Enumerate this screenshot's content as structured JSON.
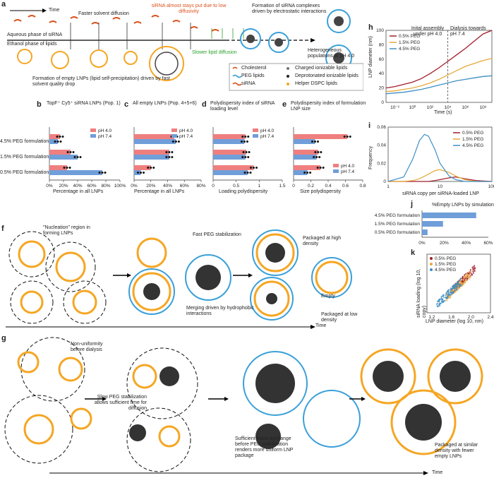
{
  "panel_labels": {
    "a": "a",
    "b": "b",
    "c": "c",
    "d": "d",
    "e": "e",
    "f": "f",
    "g": "g",
    "h": "h",
    "i": "i",
    "j": "j",
    "k": "k"
  },
  "panel_a": {
    "time_label": "Time",
    "faster_solvent": "Faster solvent diffusion",
    "sirna_stays": "siRNA almost stays put due to low diffusivity",
    "formation_complexes": "Formation of siRNA complexes driven by electrostatic interactions",
    "aqueous_phase": "Aqueous phase of siRNA",
    "ethanol_phase": "Ethanol phase of lipids",
    "slower_lipid": "Slower lipid diffusion",
    "heterogeneous": "Heterogeneous populations at pH 4.0",
    "empty_lnps": "Formation of empty LNPs (lipid self-precipitation) driven by fast solvent quality drop",
    "legend": [
      "Cholesterol",
      "PEG lipids",
      "siRNA",
      "Charged ionizable lipids",
      "Deprotonated ionizable lipids",
      "Helper DSPC lipids"
    ]
  },
  "bar_panels": {
    "categories": [
      "4.5% PEG formulation",
      "1.5% PEG formulation",
      "0.5% PEG formulation"
    ],
    "legend": [
      "pH 4.0",
      "pH 7.4"
    ],
    "colors": {
      "ph4": "#ef7f7f",
      "ph74": "#6f9ed9"
    },
    "b": {
      "title": "TopF⁺ Cy5⁺ siRNA LNPs (Pop. 1)",
      "xlabel": "Percentage in all LNPs",
      "ticks": [
        "0%",
        "20%",
        "40%",
        "60%",
        "80%",
        "100%"
      ],
      "xmax": 100,
      "pH4": [
        15,
        30,
        25
      ],
      "pH74": [
        12,
        40,
        75
      ]
    },
    "c": {
      "title": "All empty LNPs (Pop. 4+5+6)",
      "xlabel": "Percentage in all LNPs",
      "ticks": [
        "0%",
        "20%",
        "40%",
        "60%",
        "80%"
      ],
      "xmax": 80,
      "pH4": [
        48,
        42,
        20
      ],
      "pH74": [
        50,
        42,
        8
      ]
    },
    "d": {
      "title": "Polydispersity index of siRNA loading level",
      "xlabel": "Loading polydispersity",
      "ticks": [
        "0",
        "0.5",
        "1",
        "1.5"
      ],
      "xmax": 1.5,
      "pH4": [
        0.7,
        0.72,
        0.88
      ],
      "pH74": [
        0.68,
        0.7,
        0.75
      ]
    },
    "e": {
      "title": "Polydispersity index of formulation LNP size",
      "xlabel": "Size polydispersity",
      "ticks": [
        "0",
        "0.2",
        "0.4",
        "0.6",
        "0.8"
      ],
      "xmax": 0.9,
      "pH4": [
        0.7,
        0.32,
        0.35
      ],
      "pH74": [
        0.28,
        0.3,
        0.18
      ]
    }
  },
  "panel_f": {
    "nucleation": "\"Nucleation\" region in forming LNPs",
    "fast_peg": "Fast PEG stabilization",
    "merging": "Merging driven by hydrophobic interactions",
    "packaged_high": "Packaged at high density",
    "empty": "Empty",
    "packaged_low": "Packaged at low density",
    "time": "Time"
  },
  "panel_g": {
    "non_uniformity": "Non-uniformity before dialysis",
    "slow_peg": "Slow PEG stabilization allows sufficient time for diffusion",
    "sufficient": "Sufficient mass exchange before PEG stabilization renders more uniform LNP package",
    "packaged_similar": "Packaged at similar density with fewer empty LNPs",
    "time": "Time"
  },
  "chart_data": [
    {
      "type": "line",
      "panel": "h",
      "title": "",
      "annotation_left": "Inital assembly under pH 4.0",
      "annotation_right": "Dialysis towards pH 7.4",
      "xlabel": "Time (s)",
      "ylabel": "LNP diameter (nm)",
      "x_scale": "log",
      "xlim": [
        0.001,
        1000000000
      ],
      "ylim": [
        0,
        100
      ],
      "xticks": [
        "10⁻²",
        "10⁰",
        "10²",
        "10⁴",
        "10⁶",
        "10⁸"
      ],
      "yticks": [
        "0",
        "20",
        "40",
        "60",
        "80",
        "100"
      ],
      "legend_position": "top-left",
      "series": [
        {
          "name": "0.5% PEG",
          "color": "#a11d2b",
          "x": [
            0.001,
            0.01,
            0.1,
            1,
            10,
            100,
            1000,
            10000,
            100000,
            1000000,
            10000000,
            100000000,
            1000000000
          ],
          "y": [
            20,
            22,
            25,
            28,
            33,
            40,
            48,
            57,
            66,
            75,
            85,
            95,
            100
          ]
        },
        {
          "name": "1.5% PEG",
          "color": "#e7a93a",
          "x": [
            0.001,
            0.01,
            0.1,
            1,
            10,
            100,
            1000,
            10000,
            100000,
            1000000,
            10000000,
            100000000,
            1000000000
          ],
          "y": [
            15,
            16,
            18,
            20,
            23,
            27,
            32,
            38,
            44,
            50,
            54,
            58,
            61
          ]
        },
        {
          "name": "4.5% PEG",
          "color": "#3d8fc4",
          "x": [
            0.001,
            0.01,
            0.1,
            1,
            10,
            100,
            1000,
            10000,
            100000,
            1000000,
            10000000,
            100000000,
            1000000000
          ],
          "y": [
            12,
            13,
            14,
            16,
            18,
            21,
            24,
            27,
            30,
            32,
            34,
            36,
            37
          ]
        }
      ]
    },
    {
      "type": "line",
      "panel": "i",
      "xlabel": "siRNA copy per siRNA-loaded LNP",
      "ylabel": "Frequency",
      "x_scale": "log",
      "xlim": [
        1,
        100
      ],
      "ylim": [
        0,
        0.06
      ],
      "xticks": [
        "1",
        "10",
        "100"
      ],
      "yticks": [
        "0",
        "0.02",
        "0.04",
        "0.06"
      ],
      "legend_position": "top-right",
      "series": [
        {
          "name": "0.5% PEG",
          "color": "#a11d2b",
          "x": [
            1,
            2,
            4,
            6,
            8,
            10,
            15,
            20,
            30,
            50,
            100
          ],
          "y": [
            0,
            0,
            0,
            0,
            0.001,
            0.002,
            0.004,
            0.005,
            0.003,
            0.001,
            0
          ]
        },
        {
          "name": "1.5% PEG",
          "color": "#e7a93a",
          "x": [
            1,
            2,
            3,
            4,
            6,
            8,
            10,
            15,
            20,
            30,
            50,
            100
          ],
          "y": [
            0,
            0,
            0.001,
            0.003,
            0.008,
            0.012,
            0.013,
            0.01,
            0.006,
            0.002,
            0,
            0
          ]
        },
        {
          "name": "4.5% PEG",
          "color": "#3d8fc4",
          "x": [
            1,
            2,
            3,
            4,
            5,
            6,
            8,
            10,
            15,
            20,
            30,
            100
          ],
          "y": [
            0,
            0.005,
            0.025,
            0.045,
            0.052,
            0.05,
            0.035,
            0.02,
            0.006,
            0.002,
            0,
            0
          ]
        }
      ]
    },
    {
      "type": "bar",
      "panel": "j",
      "title": "%Empty LNPs by simulation",
      "categories": [
        "4.5% PEG formulation",
        "1.5% PEG formulation",
        "0.5% PEG formulation"
      ],
      "values": [
        49,
        19,
        5
      ],
      "xlim": [
        0,
        60
      ],
      "xticks": [
        "0%",
        "20%",
        "40%",
        "60%"
      ],
      "color": "#6f9ed9"
    },
    {
      "type": "scatter",
      "panel": "k",
      "xlabel": "LNP diameter (log 10, nm)",
      "ylabel": "siRNA loading (log 10, copy)",
      "xlim": [
        1.1,
        2.4
      ],
      "ylim": [
        0,
        3
      ],
      "xticks": [
        "1.2",
        "1.6",
        "2.0",
        "2.4"
      ],
      "legend_position": "top-left",
      "series": [
        {
          "name": "0.5% PEG",
          "color": "#a11d2b",
          "center": [
            1.85,
            1.7
          ]
        },
        {
          "name": "1.5% PEG",
          "color": "#e7a93a",
          "center": [
            1.75,
            1.4
          ]
        },
        {
          "name": "4.5% PEG",
          "color": "#3d8fc4",
          "center": [
            1.55,
            1.0
          ]
        }
      ]
    }
  ]
}
